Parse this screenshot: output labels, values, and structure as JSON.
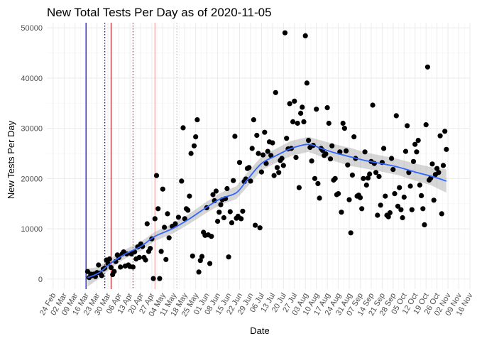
{
  "chart_data": {
    "type": "scatter",
    "title": "New Total Tests Per Day as of 2020-11-05",
    "xlabel": "Date",
    "ylabel": "New Tests Per Day",
    "xlim": [
      "2020-02-20",
      "2020-11-16"
    ],
    "ylim": [
      -2000,
      51000
    ],
    "x_ticks": [
      "24 Feb",
      "02 Mar",
      "09 Mar",
      "16 Mar",
      "23 Mar",
      "30 Mar",
      "06 Apr",
      "13 Apr",
      "20 Apr",
      "27 Apr",
      "04 May",
      "11 May",
      "18 May",
      "25 May",
      "01 Jun",
      "08 Jun",
      "15 Jun",
      "22 Jun",
      "29 Jun",
      "06 Jul",
      "13 Jul",
      "20 Jul",
      "27 Jul",
      "03 Aug",
      "10 Aug",
      "17 Aug",
      "24 Aug",
      "31 Aug",
      "07 Sep",
      "14 Sep",
      "21 Sep",
      "28 Sep",
      "05 Oct",
      "12 Oct",
      "19 Oct",
      "26 Oct",
      "02 Nov",
      "09 Nov",
      "16 Nov"
    ],
    "x_tick_dates": [
      "2020-02-24",
      "2020-03-02",
      "2020-03-09",
      "2020-03-16",
      "2020-03-23",
      "2020-03-30",
      "2020-04-06",
      "2020-04-13",
      "2020-04-20",
      "2020-04-27",
      "2020-05-04",
      "2020-05-11",
      "2020-05-18",
      "2020-05-25",
      "2020-06-01",
      "2020-06-08",
      "2020-06-15",
      "2020-06-22",
      "2020-06-29",
      "2020-07-06",
      "2020-07-13",
      "2020-07-20",
      "2020-07-27",
      "2020-08-03",
      "2020-08-10",
      "2020-08-17",
      "2020-08-24",
      "2020-08-31",
      "2020-09-07",
      "2020-09-14",
      "2020-09-21",
      "2020-09-28",
      "2020-10-05",
      "2020-10-12",
      "2020-10-19",
      "2020-10-26",
      "2020-11-02",
      "2020-11-09",
      "2020-11-16"
    ],
    "y_ticks": [
      0,
      10000,
      20000,
      30000,
      40000,
      50000
    ],
    "y_tick_labels": [
      "0",
      "10000",
      "20000",
      "30000",
      "40000",
      "50000"
    ],
    "grid": true,
    "point_color": "#000000",
    "smooth_color": "#3366FF",
    "ribbon_color": "#999999",
    "vlines": [
      {
        "date": "2020-03-16",
        "color": "#0000CD",
        "style": "solid"
      },
      {
        "date": "2020-03-28",
        "color": "#00008B",
        "style": "dotted"
      },
      {
        "date": "2020-04-01",
        "color": "#B22222",
        "style": "solid"
      },
      {
        "date": "2020-04-15",
        "color": "#B22222",
        "style": "dotted"
      },
      {
        "date": "2020-04-29",
        "color": "#F4A6A6",
        "style": "solid"
      },
      {
        "date": "2020-05-13",
        "color": "#BBBBBB",
        "style": "dotted"
      }
    ],
    "points": [
      [
        "2020-03-17",
        1500
      ],
      [
        "2020-03-18",
        300
      ],
      [
        "2020-03-19",
        1000
      ],
      [
        "2020-03-20",
        700
      ],
      [
        "2020-03-21",
        1000
      ],
      [
        "2020-03-22",
        500
      ],
      [
        "2020-03-23",
        1300
      ],
      [
        "2020-03-24",
        2800
      ],
      [
        "2020-03-25",
        1200
      ],
      [
        "2020-03-26",
        700
      ],
      [
        "2020-03-27",
        2000
      ],
      [
        "2020-03-28",
        2200
      ],
      [
        "2020-03-29",
        3800
      ],
      [
        "2020-03-30",
        3100
      ],
      [
        "2020-03-31",
        4000
      ],
      [
        "2020-04-01",
        2300
      ],
      [
        "2020-04-02",
        900
      ],
      [
        "2020-04-03",
        1500
      ],
      [
        "2020-04-04",
        3500
      ],
      [
        "2020-04-05",
        4800
      ],
      [
        "2020-04-06",
        4300
      ],
      [
        "2020-04-07",
        2400
      ],
      [
        "2020-04-08",
        5000
      ],
      [
        "2020-04-09",
        5400
      ],
      [
        "2020-04-10",
        2600
      ],
      [
        "2020-04-11",
        5000
      ],
      [
        "2020-04-12",
        2800
      ],
      [
        "2020-04-13",
        2500
      ],
      [
        "2020-04-14",
        5000
      ],
      [
        "2020-04-15",
        2400
      ],
      [
        "2020-04-16",
        5400
      ],
      [
        "2020-04-17",
        4000
      ],
      [
        "2020-04-18",
        6400
      ],
      [
        "2020-04-19",
        4300
      ],
      [
        "2020-04-20",
        7000
      ],
      [
        "2020-04-21",
        6500
      ],
      [
        "2020-04-22",
        4300
      ],
      [
        "2020-04-23",
        3800
      ],
      [
        "2020-04-24",
        11000
      ],
      [
        "2020-04-25",
        5500
      ],
      [
        "2020-04-26",
        6100
      ],
      [
        "2020-04-27",
        8000
      ],
      [
        "2020-04-28",
        100
      ],
      [
        "2020-04-29",
        12000
      ],
      [
        "2020-04-30",
        20600
      ],
      [
        "2020-05-01",
        14000
      ],
      [
        "2020-05-02",
        100
      ],
      [
        "2020-05-03",
        5500
      ],
      [
        "2020-05-04",
        17900
      ],
      [
        "2020-05-05",
        10300
      ],
      [
        "2020-05-06",
        3900
      ],
      [
        "2020-05-07",
        13000
      ],
      [
        "2020-05-08",
        8200
      ],
      [
        "2020-05-10",
        10500
      ],
      [
        "2020-05-12",
        11000
      ],
      [
        "2020-05-14",
        12300
      ],
      [
        "2020-05-16",
        19500
      ],
      [
        "2020-05-17",
        30100
      ],
      [
        "2020-05-18",
        12000
      ],
      [
        "2020-05-19",
        14000
      ],
      [
        "2020-05-20",
        13700
      ],
      [
        "2020-05-21",
        16500
      ],
      [
        "2020-05-22",
        25000
      ],
      [
        "2020-05-23",
        4600
      ],
      [
        "2020-05-24",
        26500
      ],
      [
        "2020-05-25",
        28300
      ],
      [
        "2020-05-26",
        31700
      ],
      [
        "2020-05-27",
        1400
      ],
      [
        "2020-05-28",
        3700
      ],
      [
        "2020-05-29",
        4500
      ],
      [
        "2020-05-30",
        9300
      ],
      [
        "2020-05-31",
        8700
      ],
      [
        "2020-06-01",
        14200
      ],
      [
        "2020-06-02",
        8800
      ],
      [
        "2020-06-03",
        3100
      ],
      [
        "2020-06-04",
        8500
      ],
      [
        "2020-06-05",
        16800
      ],
      [
        "2020-06-06",
        15600
      ],
      [
        "2020-06-07",
        17500
      ],
      [
        "2020-06-08",
        11500
      ],
      [
        "2020-06-09",
        13300
      ],
      [
        "2020-06-10",
        14800
      ],
      [
        "2020-06-11",
        15800
      ],
      [
        "2020-06-12",
        12200
      ],
      [
        "2020-06-13",
        16000
      ],
      [
        "2020-06-14",
        18000
      ],
      [
        "2020-06-15",
        4400
      ],
      [
        "2020-06-16",
        13400
      ],
      [
        "2020-06-17",
        11200
      ],
      [
        "2020-06-18",
        19600
      ],
      [
        "2020-06-19",
        28400
      ],
      [
        "2020-06-20",
        12100
      ],
      [
        "2020-06-21",
        12500
      ],
      [
        "2020-06-22",
        23200
      ],
      [
        "2020-06-23",
        12000
      ],
      [
        "2020-06-24",
        13500
      ],
      [
        "2020-06-25",
        19400
      ],
      [
        "2020-06-26",
        19900
      ],
      [
        "2020-06-27",
        22000
      ],
      [
        "2020-06-28",
        22200
      ],
      [
        "2020-06-29",
        19500
      ],
      [
        "2020-06-30",
        26000
      ],
      [
        "2020-07-01",
        31700
      ],
      [
        "2020-07-02",
        10700
      ],
      [
        "2020-07-03",
        28600
      ],
      [
        "2020-07-04",
        25000
      ],
      [
        "2020-07-05",
        10200
      ],
      [
        "2020-07-06",
        21300
      ],
      [
        "2020-07-07",
        24700
      ],
      [
        "2020-07-08",
        29200
      ],
      [
        "2020-07-09",
        23000
      ],
      [
        "2020-07-10",
        25400
      ],
      [
        "2020-07-11",
        27300
      ],
      [
        "2020-07-12",
        24600
      ],
      [
        "2020-07-13",
        27100
      ],
      [
        "2020-07-14",
        20600
      ],
      [
        "2020-07-15",
        37100
      ],
      [
        "2020-07-16",
        22200
      ],
      [
        "2020-07-17",
        21200
      ],
      [
        "2020-07-18",
        23600
      ],
      [
        "2020-07-19",
        24000
      ],
      [
        "2020-07-20",
        22600
      ],
      [
        "2020-07-21",
        49000
      ],
      [
        "2020-07-22",
        28000
      ],
      [
        "2020-07-23",
        25900
      ],
      [
        "2020-07-24",
        34900
      ],
      [
        "2020-07-25",
        26000
      ],
      [
        "2020-07-26",
        31300
      ],
      [
        "2020-07-27",
        35400
      ],
      [
        "2020-07-28",
        24200
      ],
      [
        "2020-07-29",
        31000
      ],
      [
        "2020-07-30",
        18200
      ],
      [
        "2020-07-31",
        33000
      ],
      [
        "2020-08-01",
        34200
      ],
      [
        "2020-08-02",
        31300
      ],
      [
        "2020-08-03",
        48400
      ],
      [
        "2020-08-04",
        39000
      ],
      [
        "2020-08-05",
        27600
      ],
      [
        "2020-08-06",
        26200
      ],
      [
        "2020-08-07",
        23500
      ],
      [
        "2020-08-08",
        26600
      ],
      [
        "2020-08-09",
        20000
      ],
      [
        "2020-08-10",
        33800
      ],
      [
        "2020-08-11",
        19000
      ],
      [
        "2020-08-12",
        16100
      ],
      [
        "2020-08-13",
        26000
      ],
      [
        "2020-08-14",
        25600
      ],
      [
        "2020-08-15",
        24600
      ],
      [
        "2020-08-16",
        24900
      ],
      [
        "2020-08-17",
        34100
      ],
      [
        "2020-08-18",
        31000
      ],
      [
        "2020-08-19",
        23900
      ],
      [
        "2020-08-20",
        26500
      ],
      [
        "2020-08-21",
        19700
      ],
      [
        "2020-08-22",
        20000
      ],
      [
        "2020-08-23",
        16800
      ],
      [
        "2020-08-24",
        17000
      ],
      [
        "2020-08-25",
        25300
      ],
      [
        "2020-08-26",
        13300
      ],
      [
        "2020-08-27",
        31000
      ],
      [
        "2020-08-28",
        30000
      ],
      [
        "2020-08-29",
        25500
      ],
      [
        "2020-08-30",
        22700
      ],
      [
        "2020-08-31",
        15800
      ],
      [
        "2020-09-01",
        9200
      ],
      [
        "2020-09-02",
        20700
      ],
      [
        "2020-09-03",
        28300
      ],
      [
        "2020-09-04",
        24000
      ],
      [
        "2020-09-05",
        16500
      ],
      [
        "2020-09-06",
        16700
      ],
      [
        "2020-09-07",
        16200
      ],
      [
        "2020-09-08",
        14000
      ],
      [
        "2020-09-09",
        20000
      ],
      [
        "2020-09-10",
        25300
      ],
      [
        "2020-09-11",
        18700
      ],
      [
        "2020-09-12",
        20100
      ],
      [
        "2020-09-13",
        20900
      ],
      [
        "2020-09-14",
        23400
      ],
      [
        "2020-09-15",
        34600
      ],
      [
        "2020-09-16",
        23000
      ],
      [
        "2020-09-17",
        21200
      ],
      [
        "2020-09-18",
        12700
      ],
      [
        "2020-09-19",
        20400
      ],
      [
        "2020-09-20",
        14700
      ],
      [
        "2020-09-21",
        23200
      ],
      [
        "2020-09-22",
        26000
      ],
      [
        "2020-09-23",
        16500
      ],
      [
        "2020-09-24",
        12700
      ],
      [
        "2020-09-25",
        12400
      ],
      [
        "2020-09-26",
        13200
      ],
      [
        "2020-09-27",
        24000
      ],
      [
        "2020-09-28",
        21800
      ],
      [
        "2020-09-29",
        17000
      ],
      [
        "2020-09-30",
        32500
      ],
      [
        "2020-10-01",
        14500
      ],
      [
        "2020-10-02",
        18200
      ],
      [
        "2020-10-03",
        13800
      ],
      [
        "2020-10-04",
        12200
      ],
      [
        "2020-10-05",
        16300
      ],
      [
        "2020-10-06",
        25400
      ],
      [
        "2020-10-07",
        30500
      ],
      [
        "2020-10-08",
        21200
      ],
      [
        "2020-10-09",
        18500
      ],
      [
        "2020-10-10",
        13800
      ],
      [
        "2020-10-11",
        23400
      ],
      [
        "2020-10-12",
        26800
      ],
      [
        "2020-10-13",
        25300
      ],
      [
        "2020-10-14",
        27600
      ],
      [
        "2020-10-15",
        18700
      ],
      [
        "2020-10-16",
        16600
      ],
      [
        "2020-10-17",
        14000
      ],
      [
        "2020-10-18",
        10800
      ],
      [
        "2020-10-19",
        30700
      ],
      [
        "2020-10-20",
        42200
      ],
      [
        "2020-10-21",
        19700
      ],
      [
        "2020-10-22",
        20100
      ],
      [
        "2020-10-23",
        22900
      ],
      [
        "2020-10-24",
        15700
      ],
      [
        "2020-10-25",
        20800
      ],
      [
        "2020-10-26",
        22000
      ],
      [
        "2020-10-27",
        21200
      ],
      [
        "2020-10-28",
        28500
      ],
      [
        "2020-10-29",
        13000
      ],
      [
        "2020-10-30",
        22600
      ],
      [
        "2020-10-31",
        29400
      ],
      [
        "2020-11-01",
        25800
      ]
    ],
    "smooth": [
      [
        "2020-03-17",
        300
      ],
      [
        "2020-03-24",
        1200
      ],
      [
        "2020-04-01",
        3200
      ],
      [
        "2020-04-10",
        5000
      ],
      [
        "2020-04-20",
        6500
      ],
      [
        "2020-04-29",
        8500
      ],
      [
        "2020-05-10",
        10000
      ],
      [
        "2020-05-20",
        11800
      ],
      [
        "2020-06-01",
        14300
      ],
      [
        "2020-06-10",
        16000
      ],
      [
        "2020-06-20",
        17200
      ],
      [
        "2020-06-27",
        19800
      ],
      [
        "2020-07-06",
        23000
      ],
      [
        "2020-07-15",
        24500
      ],
      [
        "2020-07-25",
        26000
      ],
      [
        "2020-08-05",
        26800
      ],
      [
        "2020-08-13",
        26000
      ],
      [
        "2020-08-22",
        25100
      ],
      [
        "2020-09-01",
        24300
      ],
      [
        "2020-09-10",
        23600
      ],
      [
        "2020-09-20",
        23000
      ],
      [
        "2020-10-01",
        22300
      ],
      [
        "2020-10-12",
        21300
      ],
      [
        "2020-10-22",
        20500
      ],
      [
        "2020-11-01",
        19500
      ]
    ],
    "ribbon_halfwidth": [
      1800,
      1200,
      1000,
      900,
      900,
      900,
      1000,
      1000,
      1100,
      1200,
      1300,
      1400,
      1400,
      1400,
      1500,
      1500,
      1600,
      1700,
      1800,
      1600,
      1600,
      1600,
      1700,
      1800,
      2300
    ]
  }
}
